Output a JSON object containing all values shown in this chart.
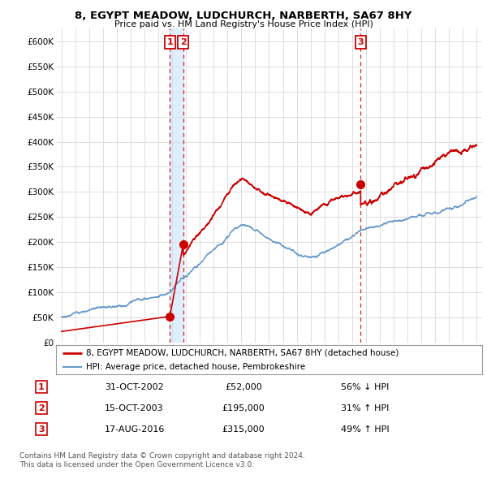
{
  "title": "8, EGYPT MEADOW, LUDCHURCH, NARBERTH, SA67 8HY",
  "subtitle": "Price paid vs. HM Land Registry's House Price Index (HPI)",
  "ylabel_ticks": [
    "£0",
    "£50K",
    "£100K",
    "£150K",
    "£200K",
    "£250K",
    "£300K",
    "£350K",
    "£400K",
    "£450K",
    "£500K",
    "£550K",
    "£600K"
  ],
  "ytick_values": [
    0,
    50000,
    100000,
    150000,
    200000,
    250000,
    300000,
    350000,
    400000,
    450000,
    500000,
    550000,
    600000
  ],
  "ylim": [
    0,
    625000
  ],
  "xlim_start": 1994.6,
  "xlim_end": 2025.4,
  "sale1_x": 2002.83,
  "sale1_y": 52000,
  "sale1_label": "1",
  "sale2_x": 2003.79,
  "sale2_y": 195000,
  "sale2_label": "2",
  "sale3_x": 2016.62,
  "sale3_y": 315000,
  "sale3_label": "3",
  "house_line_color": "#cc0000",
  "hpi_line_color": "#6699cc",
  "shade_color": "#ddeeff",
  "table_rows": [
    {
      "num": "1",
      "date": "31-OCT-2002",
      "price": "£52,000",
      "hpi": "56% ↓ HPI"
    },
    {
      "num": "2",
      "date": "15-OCT-2003",
      "price": "£195,000",
      "hpi": "31% ↑ HPI"
    },
    {
      "num": "3",
      "date": "17-AUG-2016",
      "price": "£315,000",
      "hpi": "49% ↑ HPI"
    }
  ],
  "footnote1": "Contains HM Land Registry data © Crown copyright and database right 2024.",
  "footnote2": "This data is licensed under the Open Government Licence v3.0.",
  "legend_label1": "8, EGYPT MEADOW, LUDCHURCH, NARBERTH, SA67 8HY (detached house)",
  "legend_label2": "HPI: Average price, detached house, Pembrokeshire",
  "background_color": "#ffffff",
  "grid_color": "#dddddd"
}
